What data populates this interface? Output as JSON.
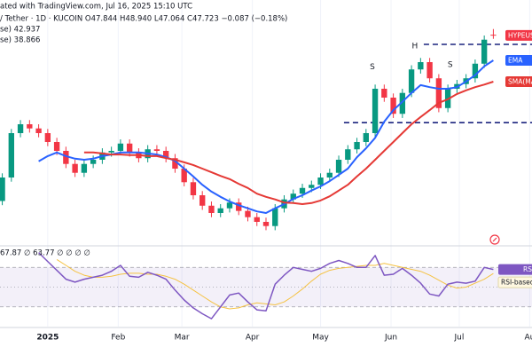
{
  "header": {
    "line1": "ated with TradingView.com, Jul 16, 2025 15:10 UTC",
    "line2": "/ Tether · 1D · KUCOIN  O47.844  H48.940  L47.064  C47.723  −0.087 (−0.18%)",
    "line3": "se) 42.937",
    "line4": "se) 38.866"
  },
  "chart_data": [
    {
      "type": "candlestick",
      "x": [
        -20,
        -16,
        -12,
        -8,
        -4,
        0,
        4,
        8,
        12,
        16,
        20,
        24,
        28,
        32,
        36,
        40,
        44,
        48,
        52,
        56,
        60,
        64,
        68,
        72,
        76,
        80,
        84,
        88,
        92,
        96,
        100,
        104,
        108,
        112,
        116,
        120,
        124,
        128,
        132,
        136,
        140,
        144,
        148,
        152,
        156,
        160,
        164,
        168,
        172,
        176,
        180,
        184,
        188,
        192,
        196
      ],
      "xlim": [
        -21,
        213
      ],
      "xticks": [
        {
          "value": 0,
          "label": "2025"
        },
        {
          "value": 31,
          "label": "Feb"
        },
        {
          "value": 59,
          "label": "Mar"
        },
        {
          "value": 90,
          "label": "Apr"
        },
        {
          "value": 120,
          "label": "May"
        },
        {
          "value": 151,
          "label": "Jun"
        },
        {
          "value": 181,
          "label": "Jul"
        },
        {
          "value": 212,
          "label": "Au"
        }
      ],
      "ylim": [
        8.6,
        51.1
      ],
      "grid": true,
      "series": [
        {
          "name": "HYPEUSDT",
          "up_color": "#089981",
          "down_color": "#f23645",
          "color": "#f23645",
          "open": [
            16.0,
            20.5,
            29.0,
            30.7,
            29.9,
            29.0,
            27.3,
            25.6,
            23.1,
            21.4,
            23.1,
            23.9,
            25.3,
            25.6,
            27.0,
            25.3,
            24.2,
            25.9,
            25.6,
            24.2,
            22.2,
            19.6,
            17.1,
            15.1,
            13.7,
            14.6,
            15.7,
            14.1,
            12.9,
            12.0,
            11.2,
            14.6,
            16.3,
            17.4,
            18.5,
            19.1,
            20.5,
            21.4,
            23.9,
            25.9,
            27.3,
            29.0,
            37.5,
            35.8,
            32.7,
            36.7,
            41.2,
            42.6,
            39.5,
            33.8,
            37.5,
            38.4,
            39.5,
            42.3,
            47.844
          ],
          "high": [
            21.3,
            29.8,
            31.5,
            31.5,
            30.7,
            29.8,
            28.1,
            26.4,
            23.9,
            23.9,
            24.7,
            26.1,
            26.4,
            27.8,
            27.8,
            26.1,
            26.7,
            26.7,
            26.4,
            25.0,
            23.0,
            20.4,
            17.9,
            15.9,
            15.4,
            16.5,
            16.5,
            14.9,
            13.7,
            12.8,
            15.4,
            17.1,
            18.2,
            19.3,
            19.9,
            21.3,
            22.2,
            24.7,
            26.7,
            28.1,
            29.8,
            38.3,
            38.3,
            36.6,
            37.5,
            42.0,
            43.4,
            43.4,
            40.3,
            38.3,
            39.2,
            40.3,
            43.1,
            47.7,
            48.94
          ],
          "low": [
            15.2,
            19.7,
            28.2,
            29.1,
            28.2,
            26.5,
            24.8,
            22.3,
            20.6,
            20.6,
            22.3,
            23.1,
            24.5,
            24.8,
            24.5,
            23.4,
            23.4,
            24.8,
            23.4,
            21.4,
            18.8,
            16.3,
            14.3,
            12.9,
            12.9,
            13.8,
            13.3,
            12.1,
            11.2,
            10.4,
            10.4,
            13.8,
            15.5,
            16.6,
            17.7,
            18.3,
            19.7,
            20.6,
            23.1,
            25.1,
            26.5,
            28.2,
            35.0,
            31.9,
            31.9,
            35.9,
            40.4,
            38.7,
            33.0,
            33.0,
            36.7,
            37.6,
            38.7,
            41.5,
            47.064
          ],
          "close": [
            20.5,
            29.0,
            30.7,
            29.9,
            29.0,
            27.3,
            25.6,
            23.1,
            21.4,
            23.1,
            23.9,
            25.3,
            25.6,
            27.0,
            25.3,
            24.2,
            25.9,
            25.6,
            24.2,
            22.2,
            19.6,
            17.1,
            15.1,
            13.7,
            14.6,
            15.7,
            14.1,
            12.9,
            12.0,
            11.2,
            14.6,
            16.3,
            17.4,
            18.5,
            19.1,
            20.5,
            21.4,
            23.9,
            25.9,
            27.3,
            29.0,
            37.5,
            35.8,
            32.7,
            36.7,
            41.2,
            42.6,
            39.5,
            33.8,
            37.5,
            38.4,
            39.5,
            42.3,
            46.9,
            47.723
          ]
        },
        {
          "name": "EMA",
          "color": "#2962ff",
          "values": [
            null,
            null,
            null,
            null,
            23.6,
            24.6,
            25.3,
            24.6,
            24.1,
            23.9,
            24.1,
            24.6,
            24.9,
            25.3,
            25.3,
            25.3,
            25.1,
            24.9,
            24.4,
            23.7,
            22.2,
            20.7,
            19.1,
            17.8,
            16.8,
            15.9,
            15.2,
            14.6,
            14.0,
            13.7,
            14.6,
            15.4,
            16.4,
            17.1,
            18.0,
            18.8,
            19.8,
            21.0,
            22.2,
            24.4,
            26.1,
            28.1,
            31.2,
            33.4,
            35.0,
            36.7,
            38.2,
            37.8,
            37.5,
            37.5,
            37.8,
            38.9,
            40.1,
            41.8,
            42.937
          ]
        },
        {
          "name": "SMA(MA",
          "color": "#e53935",
          "values": [
            null,
            null,
            null,
            null,
            null,
            null,
            null,
            null,
            null,
            25.3,
            25.3,
            25.1,
            24.9,
            24.9,
            24.8,
            24.8,
            24.6,
            24.6,
            24.2,
            23.9,
            23.4,
            22.9,
            22.2,
            21.5,
            20.8,
            20.2,
            19.3,
            18.5,
            17.4,
            16.8,
            16.3,
            15.7,
            15.6,
            15.4,
            15.6,
            16.1,
            16.9,
            18.0,
            19.1,
            20.7,
            22.2,
            23.9,
            25.6,
            27.3,
            29.0,
            30.7,
            32.1,
            33.4,
            34.8,
            35.5,
            36.5,
            37.2,
            37.8,
            38.3,
            38.866
          ]
        }
      ],
      "levels": [
        {
          "value": 46.0,
          "from": 165.4
        },
        {
          "value": 31.0,
          "from": 130.3
        }
      ],
      "level_color": "#1a237e",
      "annotations": [
        {
          "text": "S",
          "x": 142.8,
          "y": 41.7
        },
        {
          "text": "H",
          "x": 161.5,
          "y": 45.7
        },
        {
          "text": "S",
          "x": 177,
          "y": 42.1
        }
      ]
    },
    {
      "type": "line",
      "header": "67.87 ∅ 63.77 ∅ ∅ ∅ ∅",
      "ylim": [
        10,
        90
      ],
      "levels": [
        30,
        50,
        70
      ],
      "band_color": "#7e57c2",
      "series": [
        {
          "name": "RSI",
          "color": "#7e57c2",
          "values": [
            null,
            null,
            null,
            null,
            85,
            76,
            67,
            58,
            55,
            58,
            60,
            62,
            66,
            72,
            61,
            60,
            65,
            62,
            58,
            47,
            37,
            29,
            23,
            18,
            30,
            42,
            44,
            35,
            27,
            26,
            53,
            62,
            70,
            68,
            66,
            69,
            74,
            77,
            74,
            70,
            70,
            82,
            62,
            63,
            69,
            62,
            54,
            43,
            41,
            53,
            55,
            54,
            56,
            70,
            67.87
          ]
        },
        {
          "name": "RSI-based MA",
          "color": "#f5c242",
          "values": [
            null,
            null,
            null,
            null,
            null,
            null,
            78,
            72,
            66,
            62,
            60,
            60,
            61,
            63,
            64,
            64,
            63,
            63,
            61,
            58,
            53,
            47,
            41,
            35,
            30,
            28,
            29,
            32,
            34,
            33,
            32,
            35,
            41,
            48,
            56,
            63,
            67,
            69,
            70,
            71,
            72,
            72,
            74,
            72,
            70,
            68,
            66,
            62,
            57,
            52,
            49,
            50,
            54,
            58,
            63.77
          ]
        }
      ]
    }
  ]
}
